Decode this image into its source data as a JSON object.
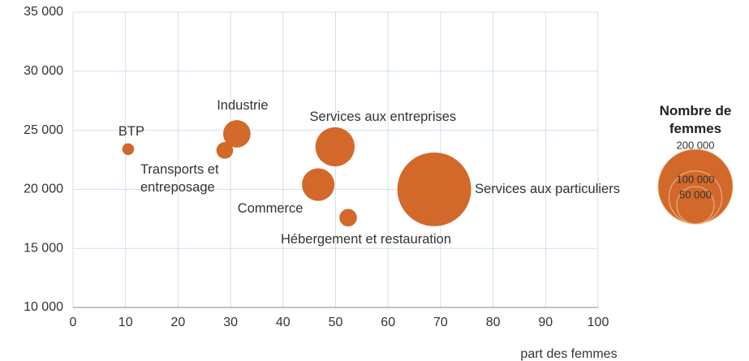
{
  "chart_data": {
    "type": "bubble",
    "categories": [
      "BTP",
      "Transports et entreposage",
      "Industrie",
      "Services aux entreprises",
      "Commerce",
      "Hébergement et restauration",
      "Services aux particuliers"
    ],
    "x": [
      10.5,
      28.9,
      31.2,
      49.9,
      46.7,
      52.4,
      68.8
    ],
    "values": [
      23400,
      23300,
      24700,
      23600,
      20400,
      17600,
      20000
    ],
    "sizes": [
      5000,
      10000,
      27000,
      55000,
      38000,
      11000,
      195000
    ],
    "color": "#d2692a",
    "xlabel": "part des femmes",
    "xlim": [
      0,
      100
    ],
    "xticks": [
      0,
      10,
      20,
      30,
      40,
      50,
      60,
      70,
      80,
      90,
      100
    ],
    "ylim": [
      10000,
      35000
    ],
    "yticks": [
      {
        "value": 10000,
        "label": "10 000"
      },
      {
        "value": 15000,
        "label": "15 000"
      },
      {
        "value": 20000,
        "label": "20 000"
      },
      {
        "value": 25000,
        "label": "25 000"
      },
      {
        "value": 30000,
        "label": "30 000"
      },
      {
        "value": 35000,
        "label": "35 000"
      }
    ],
    "grid": true,
    "size_legend": {
      "title": "Nombre de femmes",
      "values": [
        200000,
        100000,
        50000
      ],
      "labels": [
        "200 000",
        "100 000",
        "50 000"
      ]
    }
  }
}
